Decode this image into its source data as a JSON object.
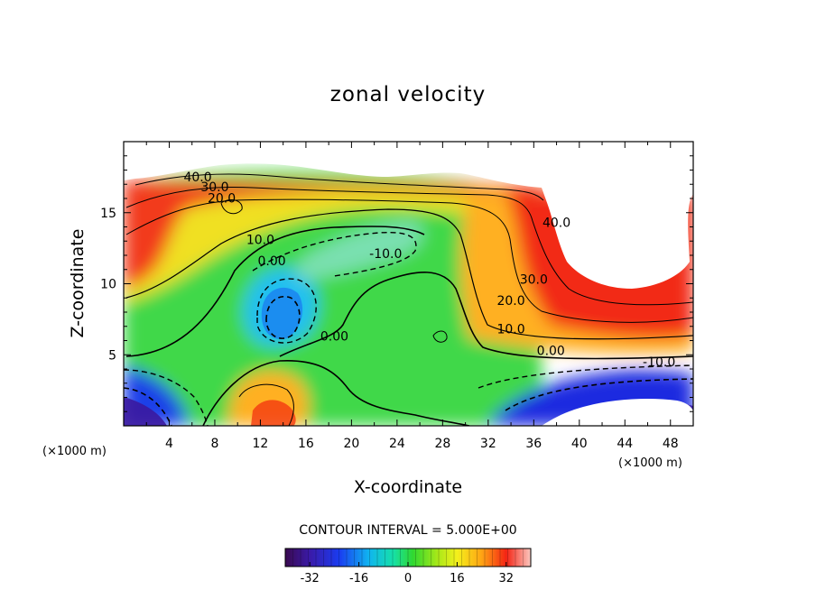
{
  "chart_data": {
    "type": "heatmap",
    "title": "zonal velocity",
    "xlabel": "X-coordinate",
    "ylabel": "Z-coordinate",
    "x_unit_left": "(×1000 m)",
    "x_unit_right": "(×1000 m)",
    "xlim": [
      0,
      50
    ],
    "ylim": [
      0,
      20
    ],
    "x_ticks": [
      "4",
      "8",
      "12",
      "16",
      "20",
      "24",
      "28",
      "32",
      "36",
      "40",
      "44",
      "48"
    ],
    "x_tick_values": [
      4,
      8,
      12,
      16,
      20,
      24,
      28,
      32,
      36,
      40,
      44,
      48
    ],
    "y_ticks": [
      "5",
      "10",
      "15"
    ],
    "y_tick_values": [
      5,
      10,
      15
    ],
    "contour_interval_text": "CONTOUR INTERVAL = 5.000E+00",
    "contour_labels": [
      {
        "text": "40.0",
        "x": 6.5,
        "z": 17.2
      },
      {
        "text": "30.0",
        "x": 8.0,
        "z": 16.5
      },
      {
        "text": "20.0",
        "x": 8.6,
        "z": 15.7
      },
      {
        "text": "10.0",
        "x": 12.0,
        "z": 12.8
      },
      {
        "text": "0.00",
        "x": 13.0,
        "z": 11.3
      },
      {
        "text": "-10.0",
        "x": 23.0,
        "z": 11.8
      },
      {
        "text": "0.00",
        "x": 18.5,
        "z": 6.0
      },
      {
        "text": "40.0",
        "x": 38.0,
        "z": 14.0
      },
      {
        "text": "30.0",
        "x": 36.0,
        "z": 10.0
      },
      {
        "text": "20.0",
        "x": 34.0,
        "z": 8.5
      },
      {
        "text": "10.0",
        "x": 34.0,
        "z": 6.5
      },
      {
        "text": "0.00",
        "x": 37.5,
        "z": 5.0
      },
      {
        "text": "-10.0",
        "x": 47.0,
        "z": 4.2
      }
    ],
    "colorbar": {
      "ticks": [
        "-32",
        "-16",
        "0",
        "16",
        "32"
      ],
      "tick_values": [
        -32,
        -16,
        0,
        16,
        32
      ],
      "range": [
        -40,
        40
      ]
    }
  }
}
